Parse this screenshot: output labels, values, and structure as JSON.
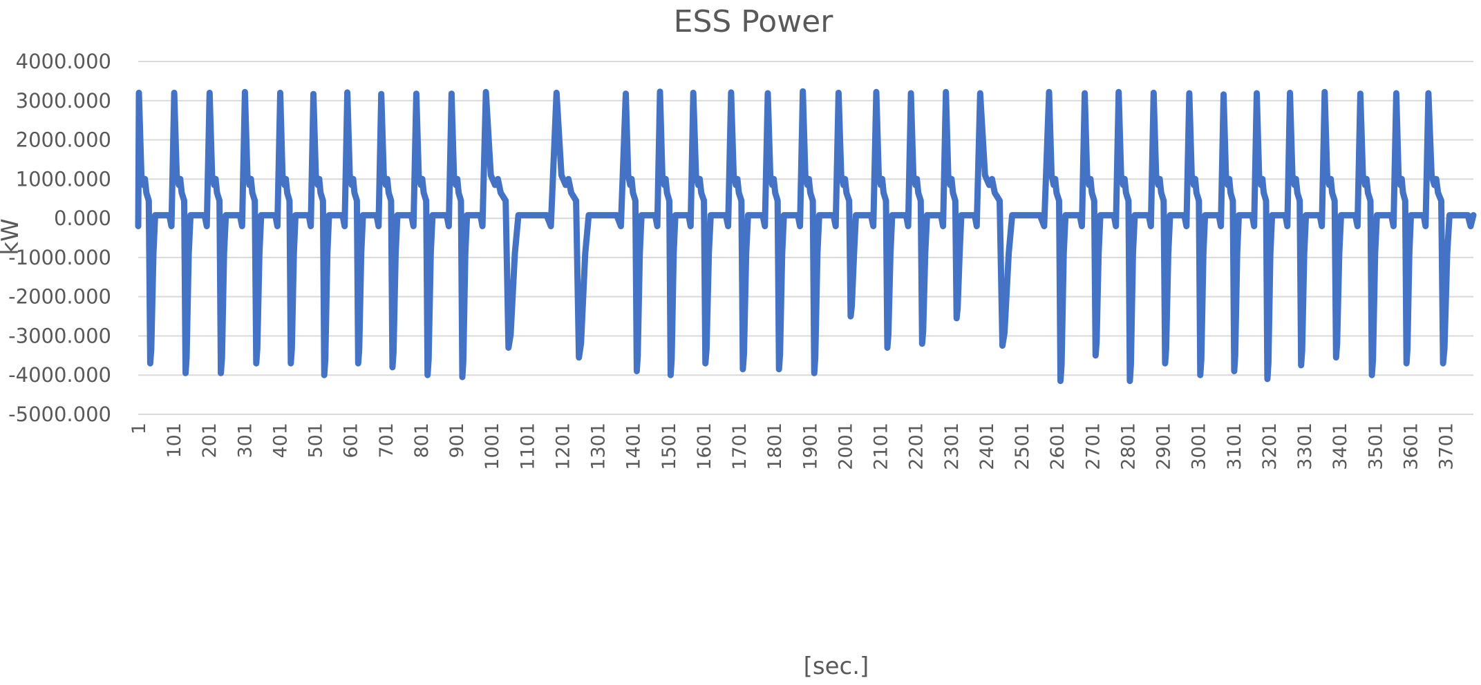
{
  "chart_data": {
    "type": "line",
    "title": "ESS Power",
    "xlabel": "[sec.]",
    "ylabel": "kW",
    "ylim": [
      -5000,
      4000
    ],
    "yticks": [
      4000,
      3000,
      2000,
      1000,
      0,
      -1000,
      -2000,
      -3000,
      -4000,
      -5000
    ],
    "ytick_labels": [
      "4000.000",
      "3000.000",
      "2000.000",
      "1000.000",
      "0.000",
      "-1000.000",
      "-2000.000",
      "-3000.000",
      "-4000.000",
      "-5000.000"
    ],
    "xlim": [
      1,
      3780
    ],
    "xtick_labels": [
      "1",
      "101",
      "201",
      "301",
      "401",
      "501",
      "601",
      "701",
      "801",
      "901",
      "1001",
      "1101",
      "1201",
      "1301",
      "1401",
      "1501",
      "1601",
      "1701",
      "1801",
      "1901",
      "2001",
      "2101",
      "2201",
      "2301",
      "2401",
      "2501",
      "2601",
      "2701",
      "2801",
      "2901",
      "3001",
      "3101",
      "3201",
      "3301",
      "3401",
      "3501",
      "3601",
      "3701"
    ],
    "grid": true,
    "legend": "none",
    "color": "#4472c4",
    "series": [
      {
        "cycle_starts": [
          1,
          101,
          201,
          301,
          401,
          495,
          591,
          687,
          786,
          886,
          981,
          1181,
          1379,
          1476,
          1570,
          1677,
          1781,
          1880,
          1981,
          2088,
          2186,
          2285,
          2380,
          2577,
          2678,
          2774,
          2873,
          2974,
          3071,
          3165,
          3259,
          3357,
          3458,
          3560,
          3650
        ],
        "peaks": [
          3200,
          3200,
          3200,
          3220,
          3200,
          3170,
          3210,
          3170,
          3180,
          3180,
          3220,
          3200,
          3180,
          3230,
          3200,
          3210,
          3190,
          3240,
          3200,
          3220,
          3190,
          3220,
          3190,
          3220,
          3190,
          3220,
          3200,
          3190,
          3160,
          3190,
          3200,
          3220,
          3180,
          3190,
          3190
        ],
        "troughs": [
          -3700,
          -3950,
          -3950,
          -3700,
          -3700,
          -4000,
          -3700,
          -3800,
          -4000,
          -4050,
          -3300,
          -3550,
          -3900,
          -4000,
          -3700,
          -3850,
          -3850,
          -3950,
          -2500,
          -3300,
          -3200,
          -2550,
          -3250,
          -4150,
          -3500,
          -4150,
          -3700,
          -4000,
          -3900,
          -4100,
          -3750,
          -3550,
          -4000,
          -3700,
          -3700
        ]
      }
    ]
  }
}
